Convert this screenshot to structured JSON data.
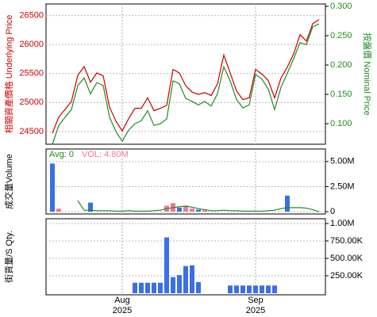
{
  "chart_data": [
    {
      "type": "line",
      "y_label": "相關資產價格 Underlying Price",
      "y2_label": "按盤價 Nominal Price",
      "ylim": [
        24280,
        26700
      ],
      "yticks": [
        24500,
        25000,
        25500,
        26000,
        26500
      ],
      "y2lim": [
        0.065,
        0.304
      ],
      "y2ticks": [
        {
          "value": 0.1,
          "label": "0.100"
        },
        {
          "value": 0.15,
          "label": "0.150"
        },
        {
          "value": 0.2,
          "label": "0.200"
        },
        {
          "value": 0.25,
          "label": "0.250"
        },
        {
          "value": 0.3,
          "label": "0.300"
        }
      ],
      "grid": true,
      "series": [
        {
          "color": "#cc0000",
          "values": [
            24470,
            24750,
            24880,
            25020,
            25470,
            25620,
            25350,
            25510,
            25460,
            24920,
            24680,
            24510,
            24720,
            24900,
            24900,
            25080,
            24860,
            24900,
            24950,
            25570,
            25510,
            25290,
            25180,
            25140,
            25170,
            25120,
            25320,
            25820,
            25510,
            25200,
            25050,
            25080,
            25570,
            25490,
            25380,
            25080,
            25420,
            25610,
            25840,
            26170,
            26060,
            26360,
            26430
          ]
        },
        {
          "color": "#228b22",
          "axis": "y2",
          "values": [
            0.065,
            0.097,
            0.111,
            0.124,
            0.165,
            0.178,
            0.151,
            0.17,
            0.165,
            0.111,
            0.087,
            0.07,
            0.089,
            0.1,
            0.105,
            0.122,
            0.097,
            0.1,
            0.108,
            0.173,
            0.168,
            0.143,
            0.138,
            0.132,
            0.138,
            0.13,
            0.151,
            0.197,
            0.173,
            0.141,
            0.127,
            0.132,
            0.184,
            0.176,
            0.159,
            0.124,
            0.162,
            0.186,
            0.211,
            0.238,
            0.235,
            0.265,
            0.27
          ]
        }
      ]
    },
    {
      "type": "bar",
      "y_label": "成交量Volume",
      "ylim": [
        -230000,
        6250000
      ],
      "yticks": [
        0,
        {
          "value": 2500000,
          "label": "2.50M"
        },
        {
          "value": 5000000,
          "label": "5.00M"
        }
      ],
      "grid": true,
      "series": [
        {
          "name": "Avg: 0",
          "type": "line",
          "color": "#228b22",
          "values": [
            null,
            null,
            null,
            null,
            1100000,
            150000,
            150000,
            100000,
            100000,
            100000,
            50000,
            50000,
            100000,
            50000,
            50000,
            50000,
            100000,
            150000,
            300000,
            400000,
            500000,
            550000,
            450000,
            300000,
            200000,
            100000,
            100000,
            150000,
            100000,
            100000,
            50000,
            50000,
            50000,
            50000,
            100000,
            150000,
            300000,
            400000,
            400000,
            400000,
            350000,
            200000,
            0
          ]
        },
        {
          "name": "VOL: 4.80M",
          "type": "bar",
          "color": "#ee7799",
          "colors": [
            "#3a6fe8",
            "#ee7799",
            "#3a6fe8",
            "#3a6fe8",
            "#3a6fe8",
            "#3a6fe8",
            "#3a6fe8",
            "#3a6fe8",
            "#3a6fe8",
            "#3a6fe8",
            "#3a6fe8",
            "#3a6fe8",
            "#3a6fe8",
            "#3a6fe8",
            "#3a6fe8",
            "#3a6fe8",
            "#3a6fe8",
            "#3a6fe8",
            "#ee7799",
            "#ee7799",
            "#3a6fe8",
            "#ee7799",
            "#ee7799",
            "#3a6fe8",
            "#ee7799",
            "#3a6fe8",
            "#3a6fe8",
            "#3a6fe8",
            "#3a6fe8",
            "#3a6fe8",
            "#3a6fe8",
            "#3a6fe8",
            "#3a6fe8",
            "#3a6fe8",
            "#3a6fe8",
            "#3a6fe8",
            "#3a6fe8",
            "#3a6fe8",
            "#3a6fe8",
            "#3a6fe8",
            "#3a6fe8",
            "#3a6fe8",
            "#3a6fe8"
          ],
          "values": [
            4800000,
            300000,
            0,
            0,
            0,
            0,
            900000,
            0,
            0,
            0,
            0,
            0,
            0,
            0,
            0,
            0,
            0,
            0,
            600000,
            850000,
            400000,
            600000,
            300000,
            200000,
            150000,
            0,
            0,
            0,
            0,
            0,
            0,
            0,
            0,
            0,
            0,
            0,
            0,
            1600000,
            0,
            0,
            0,
            0,
            0
          ]
        }
      ]
    },
    {
      "type": "bar",
      "y_label": "街貨量/S Qty.",
      "ylim": [
        -23000,
        1068000
      ],
      "yticks": [
        {
          "value": 250000,
          "label": "250.00K"
        },
        {
          "value": 500000,
          "label": "500.00K"
        },
        {
          "value": 750000,
          "label": "750.00K"
        },
        {
          "value": 1000000,
          "label": "1.00M"
        }
      ],
      "grid": true,
      "categories": [
        null,
        null,
        null,
        null,
        null,
        null,
        null,
        null,
        null,
        null,
        null,
        "Aug",
        null,
        null,
        null,
        null,
        null,
        null,
        null,
        null,
        null,
        null,
        null,
        null,
        null,
        null,
        null,
        null,
        null,
        null,
        null,
        null,
        "Sep",
        null,
        null,
        null,
        null,
        null,
        null,
        null,
        null,
        null,
        null
      ],
      "category_years": [
        null,
        null,
        null,
        null,
        null,
        null,
        null,
        null,
        null,
        null,
        null,
        "2025",
        null,
        null,
        null,
        null,
        null,
        null,
        null,
        null,
        null,
        null,
        null,
        null,
        null,
        null,
        null,
        null,
        null,
        null,
        null,
        null,
        "2025",
        null,
        null,
        null,
        null,
        null,
        null,
        null,
        null,
        null,
        null
      ],
      "series": [
        {
          "type": "bar",
          "color": "#3a6fe8",
          "values": [
            0,
            0,
            0,
            0,
            0,
            0,
            0,
            0,
            0,
            0,
            0,
            0,
            0,
            150000,
            150000,
            150000,
            150000,
            150000,
            800000,
            230000,
            260000,
            390000,
            400000,
            160000,
            0,
            0,
            0,
            0,
            110000,
            110000,
            110000,
            110000,
            110000,
            110000,
            110000,
            110000,
            0,
            0,
            0,
            0,
            0,
            0,
            0
          ]
        }
      ]
    }
  ]
}
